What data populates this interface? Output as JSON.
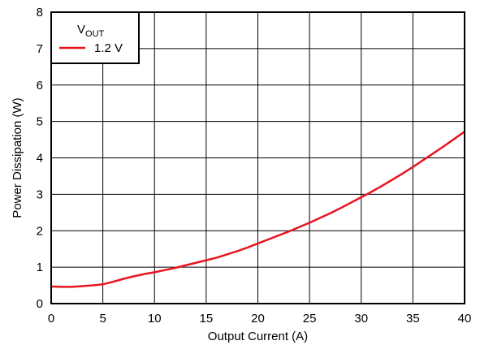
{
  "chart_data": {
    "type": "line",
    "xlabel": "Output Current (A)",
    "ylabel": "Power Dissipation (W)",
    "xlim": [
      0,
      40
    ],
    "ylim": [
      0,
      8
    ],
    "x_ticks": [
      "0",
      "5",
      "10",
      "15",
      "20",
      "25",
      "30",
      "35",
      "40"
    ],
    "y_ticks": [
      "0",
      "1",
      "2",
      "3",
      "4",
      "5",
      "6",
      "7",
      "8"
    ],
    "grid": true,
    "legend": {
      "title_main": "V",
      "title_sub": "OUT",
      "placement": "top-left"
    },
    "series": [
      {
        "name": "1.2 V",
        "color": "#e8141e",
        "points": [
          [
            0,
            0.47
          ],
          [
            1,
            0.46
          ],
          [
            2,
            0.46
          ],
          [
            3,
            0.48
          ],
          [
            4,
            0.5
          ],
          [
            5,
            0.53
          ],
          [
            6,
            0.6
          ],
          [
            7,
            0.68
          ],
          [
            8,
            0.75
          ],
          [
            9,
            0.81
          ],
          [
            10,
            0.86
          ],
          [
            11,
            0.92
          ],
          [
            12,
            0.98
          ],
          [
            13,
            1.05
          ],
          [
            14,
            1.12
          ],
          [
            15,
            1.19
          ],
          [
            16,
            1.26
          ],
          [
            17,
            1.35
          ],
          [
            18,
            1.44
          ],
          [
            19,
            1.54
          ],
          [
            20,
            1.65
          ],
          [
            21,
            1.76
          ],
          [
            22,
            1.87
          ],
          [
            23,
            1.98
          ],
          [
            24,
            2.1
          ],
          [
            25,
            2.22
          ],
          [
            26,
            2.35
          ],
          [
            27,
            2.48
          ],
          [
            28,
            2.62
          ],
          [
            29,
            2.77
          ],
          [
            30,
            2.92
          ],
          [
            31,
            3.07
          ],
          [
            32,
            3.23
          ],
          [
            33,
            3.4
          ],
          [
            34,
            3.57
          ],
          [
            35,
            3.75
          ],
          [
            36,
            3.94
          ],
          [
            37,
            4.13
          ],
          [
            38,
            4.32
          ],
          [
            39,
            4.52
          ],
          [
            40,
            4.72
          ]
        ]
      }
    ]
  }
}
